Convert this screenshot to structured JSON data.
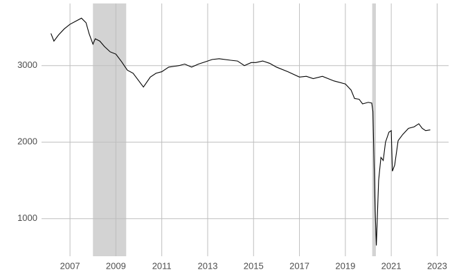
{
  "chart_data": {
    "type": "line",
    "x": [
      2006.17,
      2006.3,
      2006.5,
      2006.75,
      2007.0,
      2007.25,
      2007.5,
      2007.7,
      2007.83,
      2008.0,
      2008.1,
      2008.3,
      2008.5,
      2008.75,
      2009.0,
      2009.25,
      2009.5,
      2009.75,
      2010.0,
      2010.2,
      2010.5,
      2010.75,
      2011.0,
      2011.3,
      2011.75,
      2012.0,
      2012.3,
      2012.6,
      2012.9,
      2013.2,
      2013.5,
      2014.0,
      2014.3,
      2014.6,
      2014.9,
      2015.1,
      2015.4,
      2015.7,
      2016.0,
      2016.5,
      2017.0,
      2017.3,
      2017.6,
      2018.0,
      2018.5,
      2019.0,
      2019.25,
      2019.4,
      2019.6,
      2019.75,
      2020.0,
      2020.15,
      2020.2,
      2020.3,
      2020.35,
      2020.45,
      2020.55,
      2020.65,
      2020.75,
      2020.9,
      2021.0,
      2021.05,
      2021.15,
      2021.3,
      2021.5,
      2021.75,
      2022.0,
      2022.2,
      2022.35,
      2022.5,
      2022.7
    ],
    "series": [
      {
        "color": "#000000",
        "values": [
          3420,
          3320,
          3400,
          3480,
          3540,
          3580,
          3620,
          3560,
          3420,
          3280,
          3350,
          3320,
          3250,
          3180,
          3150,
          3050,
          2940,
          2900,
          2800,
          2720,
          2850,
          2900,
          2920,
          2980,
          3000,
          3020,
          2980,
          3020,
          3050,
          3080,
          3090,
          3070,
          3060,
          3000,
          3040,
          3040,
          3060,
          3030,
          2980,
          2920,
          2850,
          2860,
          2830,
          2860,
          2800,
          2760,
          2680,
          2570,
          2560,
          2500,
          2520,
          2510,
          2400,
          1100,
          650,
          1500,
          1800,
          1760,
          2000,
          2130,
          2150,
          1620,
          1700,
          2020,
          2100,
          2180,
          2200,
          2240,
          2180,
          2150,
          2160
        ]
      }
    ],
    "shaded_ranges": [
      [
        2008.0,
        2009.45
      ],
      [
        2020.17,
        2020.33
      ]
    ],
    "shade_color": "#d3d3d3",
    "xlim": [
      2005.76,
      2023.5
    ],
    "xticks": [
      2007,
      2009,
      2011,
      2013,
      2015,
      2017,
      2019,
      2021,
      2023
    ],
    "ylim": [
      509,
      3812
    ],
    "yticks": [
      1000,
      2000,
      3000
    ],
    "grid": true
  }
}
